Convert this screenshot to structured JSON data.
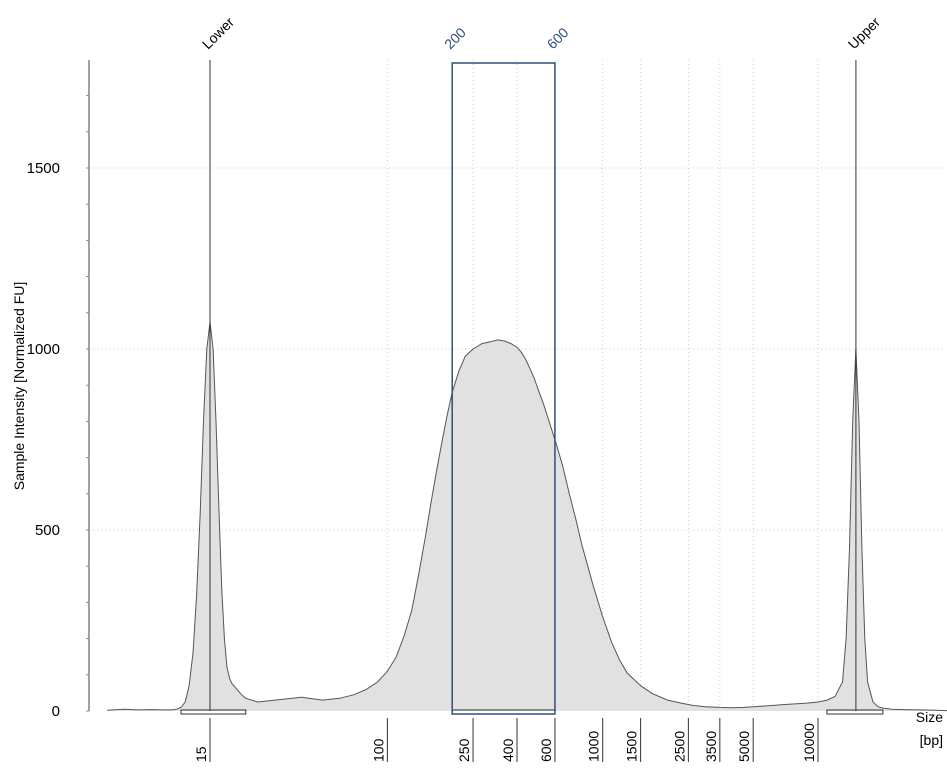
{
  "chart_data": {
    "type": "area",
    "title": "",
    "ylabel": "Sample Intensity [Normalized FU]",
    "xlabel_line1": "Size",
    "xlabel_line2": "[bp]",
    "ylim": [
      0,
      1800
    ],
    "yticks": [
      0,
      500,
      1000,
      1500
    ],
    "x_scale": "log",
    "xlim": [
      4.8,
      40000
    ],
    "xticks": [
      {
        "value": 15,
        "label": "15"
      },
      {
        "value": 100,
        "label": "100"
      },
      {
        "value": 250,
        "label": "250"
      },
      {
        "value": 400,
        "label": "400"
      },
      {
        "value": 600,
        "label": "600"
      },
      {
        "value": 1000,
        "label": "1000"
      },
      {
        "value": 1500,
        "label": "1500"
      },
      {
        "value": 2500,
        "label": "2500"
      },
      {
        "value": 3500,
        "label": "3500"
      },
      {
        "value": 5000,
        "label": "5000"
      },
      {
        "value": 10000,
        "label": "10000"
      }
    ],
    "grid": true,
    "colors": {
      "fill": "#e1e1e1",
      "line": "#555555",
      "marker_line": "#333333",
      "region": "#2f4f7a",
      "grid": "#cccccc"
    },
    "peak_markers": [
      {
        "label": "Lower",
        "size": 15
      },
      {
        "label": "Upper",
        "size": 15000
      }
    ],
    "region": {
      "start": 200,
      "end": 600,
      "start_label": "200",
      "end_label": "600"
    },
    "integration_windows": [
      {
        "from": 11,
        "to": 22
      },
      {
        "from": 200,
        "to": 600
      },
      {
        "from": 11000,
        "to": 20000
      }
    ],
    "series": [
      {
        "x": [
          5.0,
          6.0,
          7.0,
          8.0,
          9.0,
          10.0,
          10.5,
          11.0,
          11.5,
          12.0,
          12.5,
          13.0,
          13.5,
          14.0,
          14.5,
          15.0,
          15.5,
          16.0,
          16.5,
          17.0,
          17.5,
          18.0,
          18.5,
          19.0,
          19.5,
          20.0,
          21.0,
          22.0,
          25.0,
          30.0,
          40.0,
          50.0,
          60.0,
          70.0,
          80.0,
          90.0,
          100.0,
          110.0,
          120.0,
          130.0,
          140.0,
          150.0,
          160.0,
          170.0,
          180.0,
          190.0,
          200.0,
          215.0,
          230.0,
          250.0,
          275.0,
          300.0,
          325.0,
          350.0,
          375.0,
          400.0,
          420.0,
          440.0,
          460.0,
          480.0,
          500.0,
          530.0,
          560.0,
          600.0,
          650.0,
          700.0,
          750.0,
          800.0,
          900.0,
          1000.0,
          1100.0,
          1200.0,
          1300.0,
          1500.0,
          1700.0,
          2000.0,
          2300.0,
          2600.0,
          3000.0,
          3500.0,
          4000.0,
          4500.0,
          5000.0,
          6000.0,
          7000.0,
          8000.0,
          9000.0,
          10000.0,
          11000.0,
          12000.0,
          13000.0,
          13500.0,
          14000.0,
          14500.0,
          15000.0,
          15500.0,
          16000.0,
          16500.0,
          17000.0,
          18000.0,
          19000.0,
          20000.0,
          22000.0,
          25000.0,
          30000.0,
          35000.0,
          40000.0
        ],
        "y": [
          2,
          5,
          3,
          4,
          3,
          3,
          5,
          10,
          25,
          70,
          160,
          320,
          540,
          800,
          1000,
          1075,
          1000,
          800,
          560,
          340,
          200,
          120,
          90,
          75,
          68,
          60,
          45,
          35,
          25,
          30,
          38,
          30,
          35,
          45,
          60,
          80,
          110,
          150,
          210,
          280,
          380,
          480,
          580,
          670,
          750,
          820,
          880,
          940,
          980,
          1000,
          1015,
          1020,
          1025,
          1022,
          1015,
          1005,
          990,
          970,
          945,
          920,
          890,
          850,
          805,
          750,
          680,
          600,
          530,
          460,
          350,
          260,
          190,
          140,
          105,
          70,
          48,
          30,
          22,
          16,
          12,
          10,
          9,
          10,
          12,
          15,
          18,
          20,
          22,
          25,
          30,
          40,
          80,
          200,
          450,
          800,
          1000,
          800,
          450,
          200,
          80,
          25,
          12,
          8,
          5,
          4,
          3,
          2,
          1
        ]
      }
    ]
  }
}
